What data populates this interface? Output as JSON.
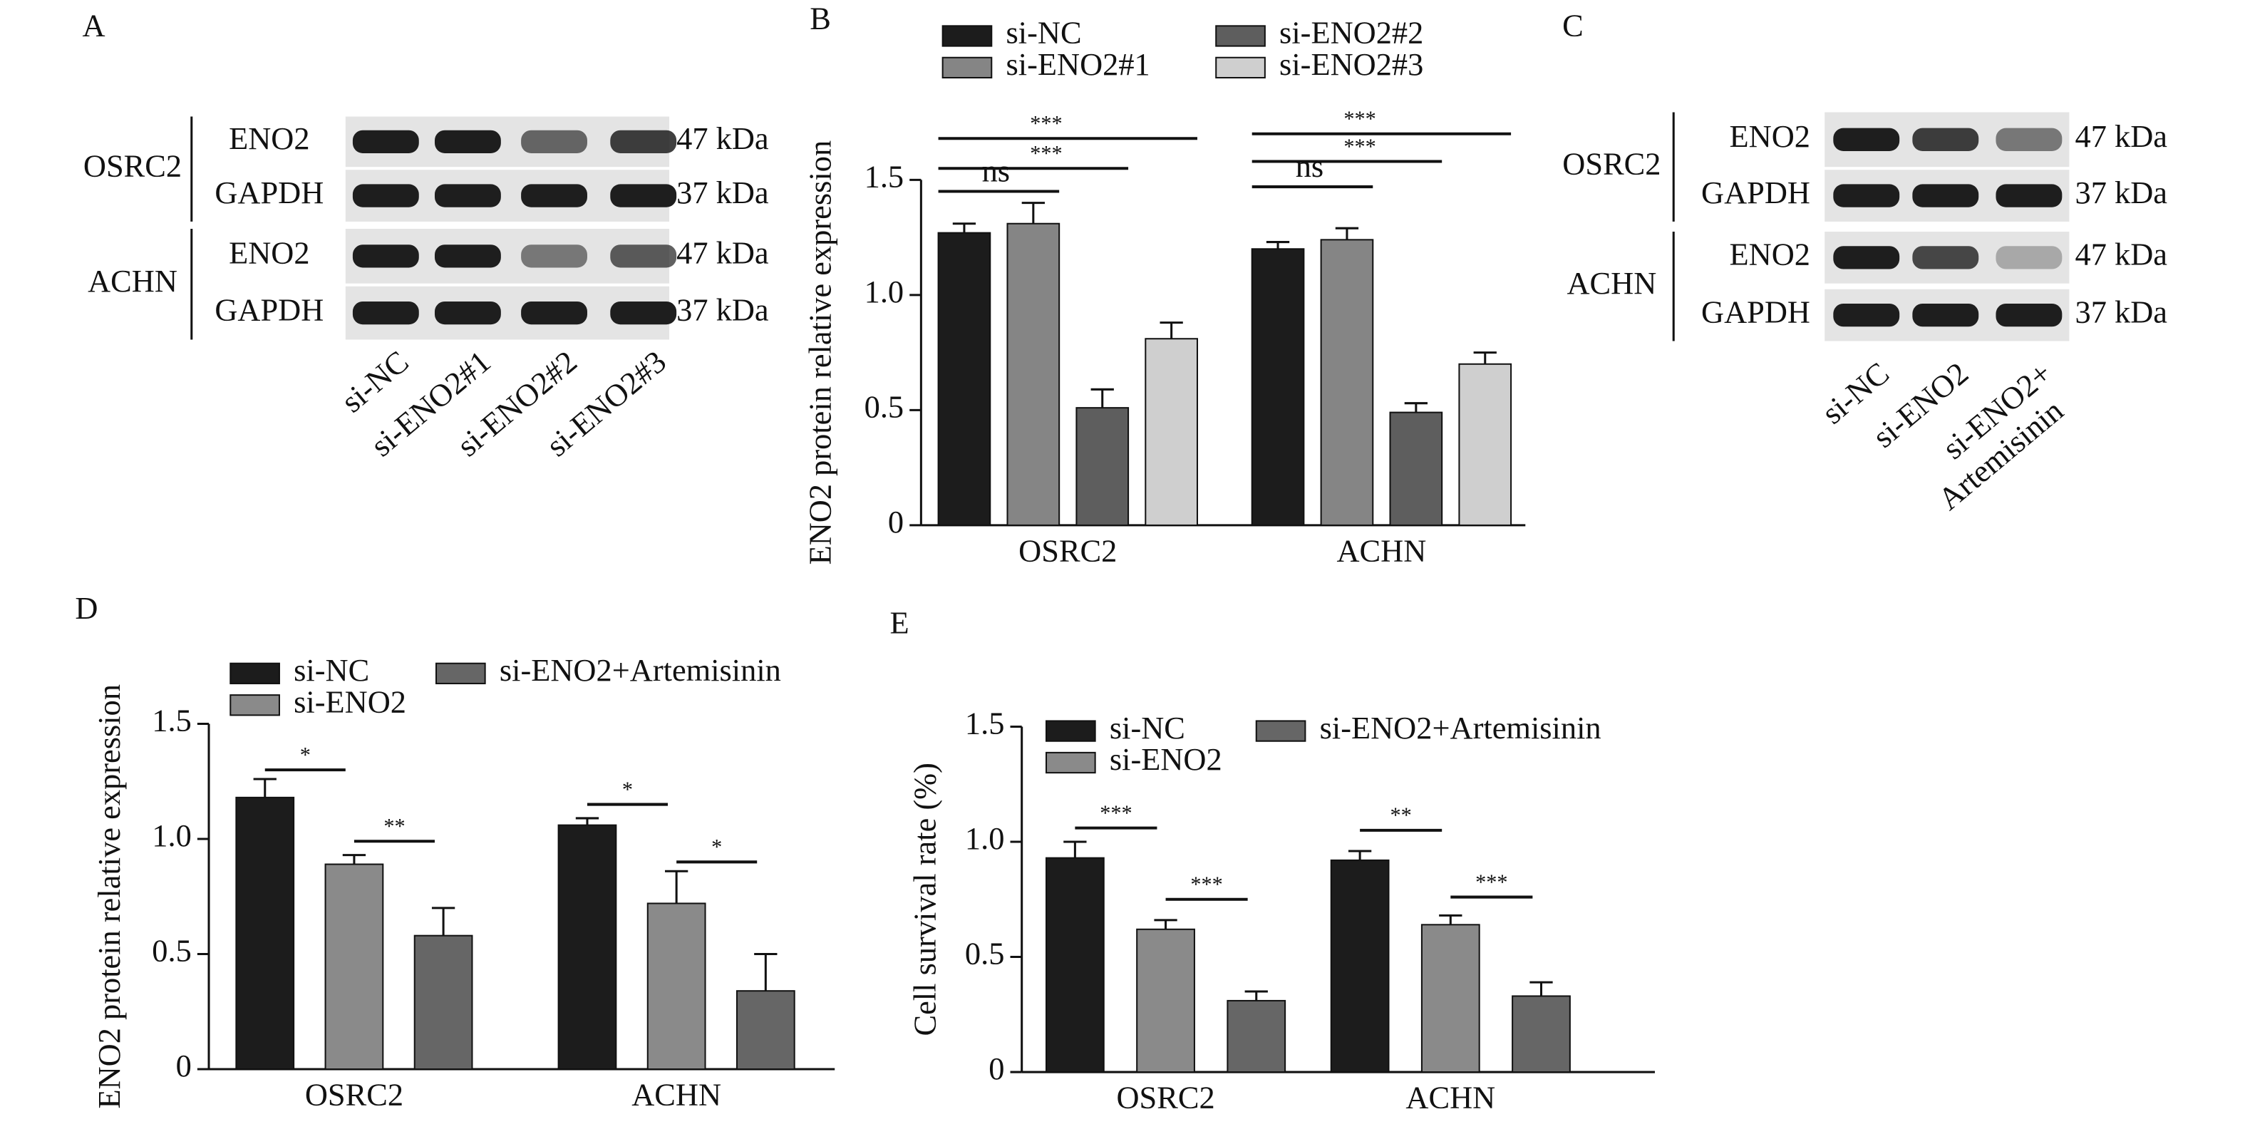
{
  "blots": [
    {
      "panel": "A",
      "rows": [
        {
          "cell_line": "OSRC2",
          "protein": "ENO2",
          "size": "47 kDa"
        },
        {
          "protein": "GAPDH",
          "size": "37 kDa"
        },
        {
          "cell_line": "ACHN",
          "protein": "ENO2",
          "size": "47 kDa"
        },
        {
          "protein": "GAPDH",
          "size": "37 kDa"
        }
      ],
      "lanes": [
        [
          "si-NC"
        ],
        [
          "si-ENO2#1"
        ],
        [
          "si-ENO2#2"
        ],
        [
          "si-ENO2#3"
        ]
      ]
    },
    {
      "panel": "C",
      "rows": [
        {
          "cell_line": "OSRC2",
          "protein": "ENO2",
          "size": "47 kDa"
        },
        {
          "protein": "GAPDH",
          "size": "37 kDa"
        },
        {
          "cell_line": "ACHN",
          "protein": "ENO2",
          "size": "47 kDa"
        },
        {
          "protein": "GAPDH",
          "size": "37 kDa"
        }
      ],
      "lanes": [
        [
          "si-NC"
        ],
        [
          "si-ENO2"
        ],
        [
          "si-ENO2+",
          "Artemisinin"
        ]
      ]
    }
  ],
  "chart_data": [
    {
      "type": "bar",
      "panel": "B",
      "ylabel": "ENO2 protein relative expression",
      "categories": [
        "OSRC2",
        "ACHN"
      ],
      "series": [
        {
          "name": "si-NC",
          "color": "#1c1c1c",
          "values": [
            1.27,
            1.2
          ],
          "errors": [
            0.04,
            0.03
          ]
        },
        {
          "name": "si-ENO2#1",
          "color": "#858585",
          "values": [
            1.31,
            1.24
          ],
          "errors": [
            0.09,
            0.05
          ]
        },
        {
          "name": "si-ENO2#2",
          "color": "#5e5e5e",
          "values": [
            0.51,
            0.49
          ],
          "errors": [
            0.08,
            0.04
          ]
        },
        {
          "name": "si-ENO2#3",
          "color": "#cfcfcf",
          "values": [
            0.81,
            0.7
          ],
          "errors": [
            0.07,
            0.05
          ]
        }
      ],
      "ylim": [
        0,
        1.5
      ],
      "yticks": [
        0,
        0.5,
        {
          "value": 1.0,
          "label": "1.0"
        },
        1.5
      ],
      "annotations": [
        "ns",
        "***",
        "***",
        "ns",
        "***",
        "***"
      ]
    },
    {
      "type": "bar",
      "panel": "D",
      "ylabel": "ENO2 protein relative expression",
      "categories": [
        "OSRC2",
        "ACHN"
      ],
      "series": [
        {
          "name": "si-NC",
          "color": "#1c1c1c",
          "values": [
            1.18,
            1.06
          ],
          "errors": [
            0.08,
            0.03
          ]
        },
        {
          "name": "si-ENO2",
          "color": "#8a8a8a",
          "values": [
            0.89,
            0.72
          ],
          "errors": [
            0.04,
            0.14
          ]
        },
        {
          "name": "si-ENO2+Artemisinin",
          "color": "#666666",
          "values": [
            0.58,
            0.34
          ],
          "errors": [
            0.12,
            0.16
          ]
        }
      ],
      "ylim": [
        0,
        1.5
      ],
      "yticks": [
        0,
        0.5,
        {
          "value": 1.0,
          "label": "1.0"
        },
        1.5
      ],
      "annotations": [
        "*",
        "**",
        "*",
        "*"
      ]
    },
    {
      "type": "bar",
      "panel": "E",
      "ylabel": "Cell survival rate (%)",
      "categories": [
        "OSRC2",
        "ACHN"
      ],
      "series": [
        {
          "name": "si-NC",
          "color": "#1c1c1c",
          "values": [
            0.93,
            0.92
          ],
          "errors": [
            0.07,
            0.04
          ]
        },
        {
          "name": "si-ENO2",
          "color": "#8a8a8a",
          "values": [
            0.62,
            0.64
          ],
          "errors": [
            0.04,
            0.04
          ]
        },
        {
          "name": "si-ENO2+Artemisinin",
          "color": "#666666",
          "values": [
            0.31,
            0.33
          ],
          "errors": [
            0.04,
            0.06
          ]
        }
      ],
      "ylim": [
        0,
        1.5
      ],
      "yticks": [
        0,
        0.5,
        {
          "value": 1.0,
          "label": "1.0"
        },
        1.5
      ],
      "annotations": [
        "***",
        "***",
        "**",
        "***"
      ]
    }
  ]
}
